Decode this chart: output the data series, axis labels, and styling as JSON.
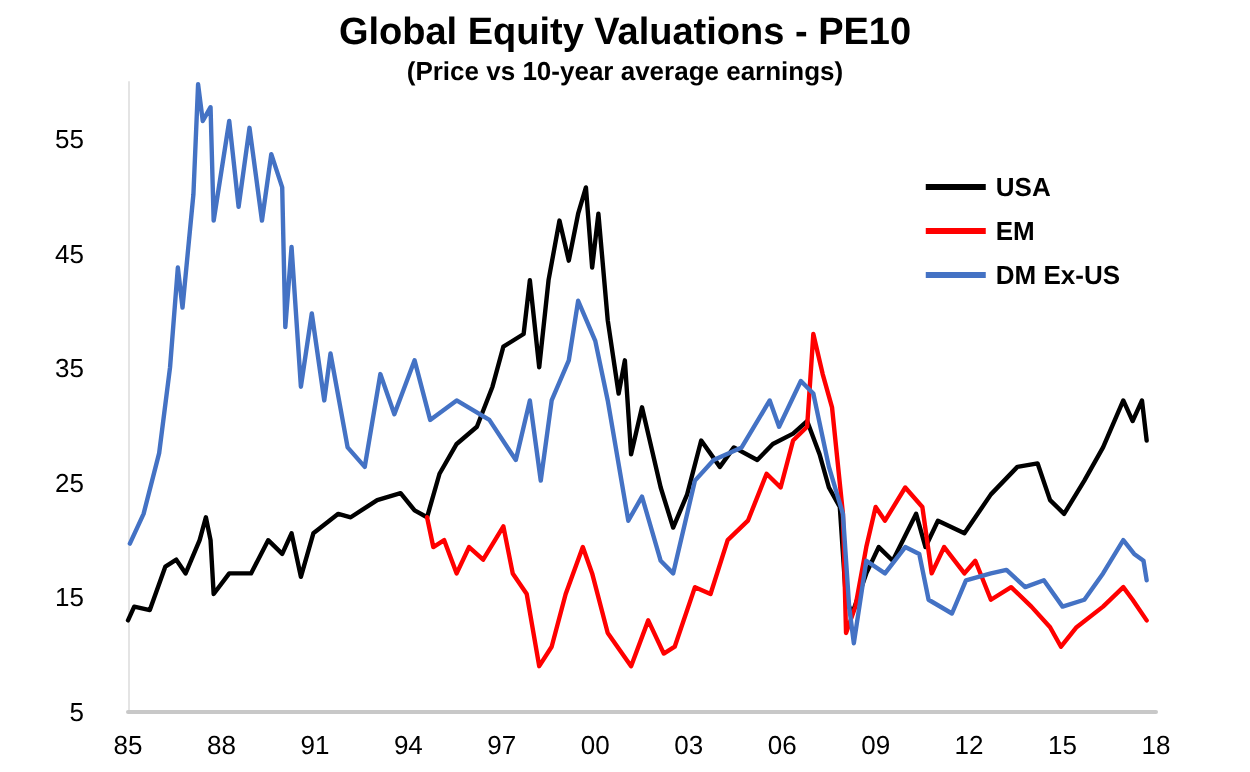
{
  "chart_data": {
    "type": "line",
    "title": "Global Equity Valuations - PE10",
    "subtitle": "(Price vs 10-year average earnings)",
    "xlim": [
      1985,
      2018
    ],
    "xticks": [
      {
        "value": 1985,
        "label": "85"
      },
      {
        "value": 1988,
        "label": "88"
      },
      {
        "value": 1991,
        "label": "91"
      },
      {
        "value": 1994,
        "label": "94"
      },
      {
        "value": 1997,
        "label": "97"
      },
      {
        "value": 2000,
        "label": "00"
      },
      {
        "value": 2003,
        "label": "03"
      },
      {
        "value": 2006,
        "label": "06"
      },
      {
        "value": 2009,
        "label": "09"
      },
      {
        "value": 2012,
        "label": "12"
      },
      {
        "value": 2015,
        "label": "15"
      },
      {
        "value": 2018,
        "label": "18"
      }
    ],
    "ylim": [
      5,
      60
    ],
    "yticks": [
      5,
      15,
      25,
      35,
      45,
      55
    ],
    "grid": false,
    "legend": "top right",
    "marker": "none",
    "line_style": "solid",
    "series": [
      {
        "name": "USA",
        "color": "#000000",
        "x": [
          1985.0,
          1985.2,
          1985.7,
          1986.2,
          1986.55,
          1986.85,
          1987.3,
          1987.5,
          1987.65,
          1987.75,
          1988.25,
          1988.95,
          1989.5,
          1989.95,
          1990.25,
          1990.55,
          1990.95,
          1991.75,
          1992.15,
          1993.0,
          1993.75,
          1994.2,
          1994.6,
          1995.0,
          1995.55,
          1996.2,
          1996.7,
          1997.05,
          1997.7,
          1997.9,
          1998.2,
          1998.5,
          1998.85,
          1999.15,
          1999.45,
          1999.7,
          1999.9,
          2000.1,
          2000.4,
          2000.75,
          2000.95,
          2001.15,
          2001.5,
          2002.1,
          2002.5,
          2002.95,
          2003.4,
          2004.0,
          2004.45,
          2005.2,
          2005.7,
          2006.35,
          2006.8,
          2007.2,
          2007.5,
          2007.85,
          2008.05,
          2008.25,
          2008.7,
          2009.1,
          2009.55,
          2010.3,
          2010.6,
          2011.0,
          2011.85,
          2012.7,
          2013.55,
          2014.2,
          2014.6,
          2015.05,
          2015.7,
          2016.3,
          2016.95,
          2017.25,
          2017.55,
          2017.7
        ],
        "values": [
          13.0,
          14.2,
          13.9,
          17.7,
          18.3,
          17.1,
          20.0,
          22.0,
          20.0,
          15.3,
          17.1,
          17.1,
          20.0,
          18.8,
          20.6,
          16.8,
          20.6,
          22.3,
          22.0,
          23.5,
          24.1,
          22.6,
          22.0,
          25.8,
          28.4,
          29.9,
          33.4,
          36.9,
          38.0,
          42.7,
          35.1,
          42.7,
          47.9,
          44.4,
          48.5,
          50.8,
          43.8,
          48.5,
          39.2,
          32.8,
          35.7,
          27.5,
          31.6,
          24.6,
          21.1,
          24.0,
          28.7,
          26.4,
          28.1,
          27.0,
          28.4,
          29.3,
          30.4,
          27.5,
          24.6,
          22.9,
          14.8,
          13.6,
          17.1,
          19.4,
          18.2,
          22.3,
          19.4,
          21.7,
          20.6,
          24.0,
          26.4,
          26.7,
          23.5,
          22.3,
          25.2,
          28.1,
          32.2,
          30.4,
          32.2,
          28.7
        ]
      },
      {
        "name": "EM",
        "color": "#ff0000",
        "x": [
          1994.6,
          1994.8,
          1995.15,
          1995.55,
          1995.95,
          1996.4,
          1997.05,
          1997.35,
          1997.8,
          1998.2,
          1998.6,
          1999.05,
          1999.6,
          1999.9,
          2000.4,
          2001.15,
          2001.7,
          2002.2,
          2002.55,
          2003.2,
          2003.7,
          2004.25,
          2004.9,
          2005.5,
          2005.95,
          2006.35,
          2006.8,
          2007.0,
          2007.3,
          2007.6,
          2007.95,
          2008.05,
          2008.35,
          2008.7,
          2009.0,
          2009.3,
          2009.95,
          2010.5,
          2010.8,
          2011.2,
          2011.85,
          2012.2,
          2012.7,
          2013.35,
          2014.0,
          2014.6,
          2014.95,
          2015.45,
          2016.3,
          2016.95,
          2017.25,
          2017.7
        ],
        "values": [
          22.0,
          19.4,
          20.0,
          17.1,
          19.4,
          18.3,
          21.2,
          17.1,
          15.3,
          9.0,
          10.7,
          15.3,
          19.4,
          17.1,
          11.9,
          9.0,
          13.0,
          10.1,
          10.7,
          15.9,
          15.3,
          20.0,
          21.7,
          25.8,
          24.6,
          28.7,
          29.9,
          38.0,
          34.5,
          31.6,
          22.3,
          11.9,
          14.2,
          19.4,
          22.9,
          21.7,
          24.6,
          22.9,
          17.1,
          19.4,
          17.1,
          18.2,
          14.8,
          15.9,
          14.2,
          12.4,
          10.7,
          12.4,
          14.2,
          15.9,
          14.8,
          13.0
        ]
      },
      {
        "name": "DM Ex-US",
        "color": "#4472c4",
        "x": [
          1985.06,
          1985.5,
          1986.0,
          1986.35,
          1986.6,
          1986.75,
          1987.1,
          1987.25,
          1987.4,
          1987.65,
          1987.75,
          1988.25,
          1988.55,
          1988.9,
          1989.3,
          1989.6,
          1989.95,
          1990.05,
          1990.25,
          1990.55,
          1990.9,
          1991.3,
          1991.5,
          1992.05,
          1992.6,
          1993.1,
          1993.55,
          1994.2,
          1994.7,
          1995.55,
          1996.6,
          1997.45,
          1997.9,
          1998.25,
          1998.6,
          1999.15,
          1999.45,
          2000.0,
          2000.4,
          2001.06,
          2001.5,
          2002.1,
          2002.5,
          2003.2,
          2003.8,
          2004.7,
          2005.6,
          2005.9,
          2006.6,
          2007.0,
          2007.5,
          2007.95,
          2008.15,
          2008.3,
          2008.7,
          2009.3,
          2009.95,
          2010.4,
          2010.7,
          2011.45,
          2011.9,
          2012.7,
          2013.2,
          2013.8,
          2014.4,
          2015.0,
          2015.7,
          2016.3,
          2016.95,
          2017.3,
          2017.6,
          2017.7
        ],
        "values": [
          19.7,
          22.3,
          27.6,
          35.1,
          43.8,
          40.3,
          50.2,
          59.8,
          56.6,
          57.8,
          47.9,
          56.6,
          49.1,
          56.0,
          47.9,
          53.7,
          50.8,
          38.6,
          45.6,
          33.4,
          39.8,
          32.2,
          36.3,
          28.1,
          26.4,
          34.5,
          31.0,
          35.7,
          30.5,
          32.2,
          30.5,
          27.0,
          32.2,
          25.2,
          32.2,
          35.7,
          40.9,
          37.4,
          32.2,
          21.7,
          23.8,
          18.2,
          17.1,
          25.2,
          27.0,
          28.1,
          32.2,
          29.9,
          33.9,
          32.8,
          26.4,
          22.3,
          14.2,
          11.0,
          18.2,
          17.1,
          19.4,
          18.8,
          14.8,
          13.6,
          16.5,
          17.1,
          17.4,
          15.9,
          16.5,
          14.2,
          14.8,
          17.1,
          20.0,
          18.8,
          18.2,
          16.5
        ]
      }
    ]
  }
}
